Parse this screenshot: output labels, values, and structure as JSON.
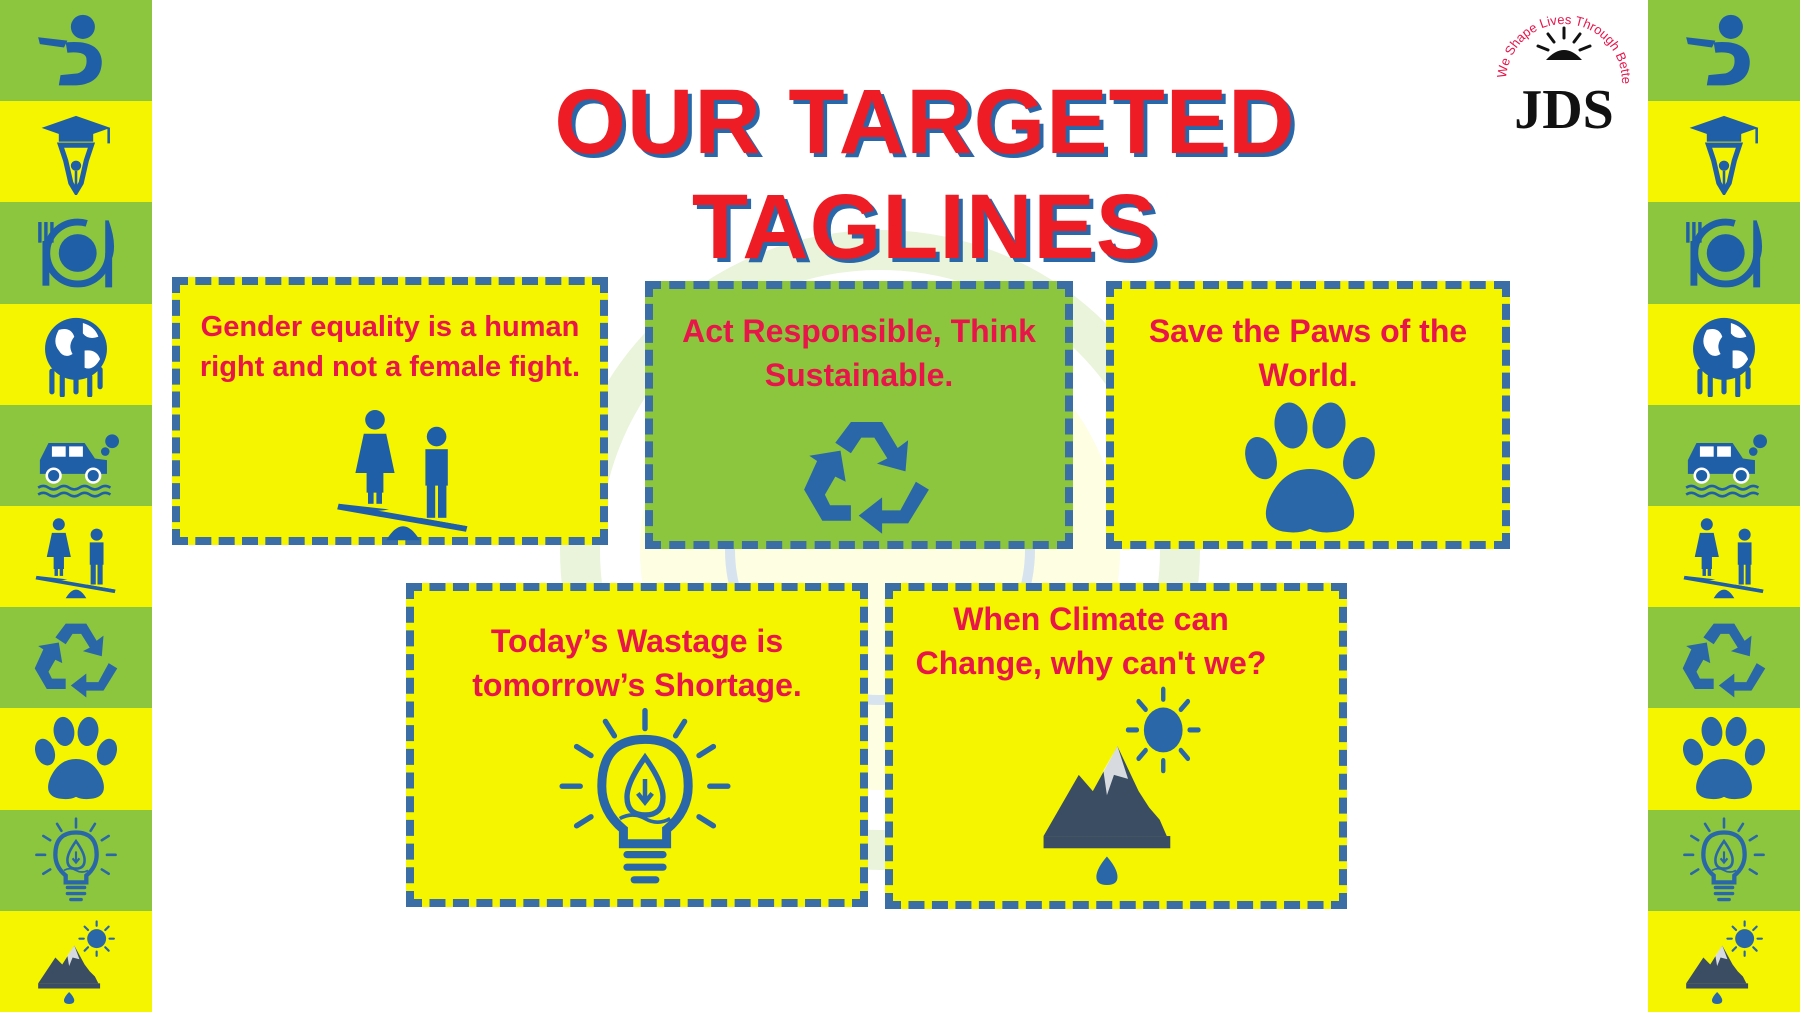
{
  "title": "OUR TARGETED TAGLINES",
  "logo": {
    "slogan": "We Shape Lives Through Better Education",
    "letters": "JDS"
  },
  "cards": [
    {
      "text": "Gender equality is a human right and not a female fight.",
      "icon": "gender-balance-icon",
      "background": "#f5f500"
    },
    {
      "text": "Act Responsible, Think Sustainable.",
      "icon": "recycle-icon",
      "background": "#8cc63f"
    },
    {
      "text": "Save the Paws of the World.",
      "icon": "paw-icon",
      "background": "#f5f500"
    },
    {
      "text": "Today’s Wastage is tomorrow’s Shortage.",
      "icon": "lightbulb-water-icon",
      "background": "#f5f500"
    },
    {
      "text": "When Climate can Change, why can't we?",
      "icon": "climate-mountain-icon",
      "background": "#f5f500"
    }
  ],
  "side_strip_icons": [
    "hunger-icon",
    "education-icon",
    "food-icon",
    "globe-icon",
    "car-pollution-icon",
    "gender-balance-icon",
    "recycle-icon",
    "paw-icon",
    "lightbulb-water-icon",
    "climate-mountain-icon"
  ],
  "colors": {
    "title": "#ee1c24",
    "title_shadow": "#2a67a8",
    "icon_blue": "#2a67a8",
    "card_text": "#e8154b",
    "yellow": "#f5f500",
    "green": "#8cc63f",
    "border": "#3b6ea5"
  }
}
